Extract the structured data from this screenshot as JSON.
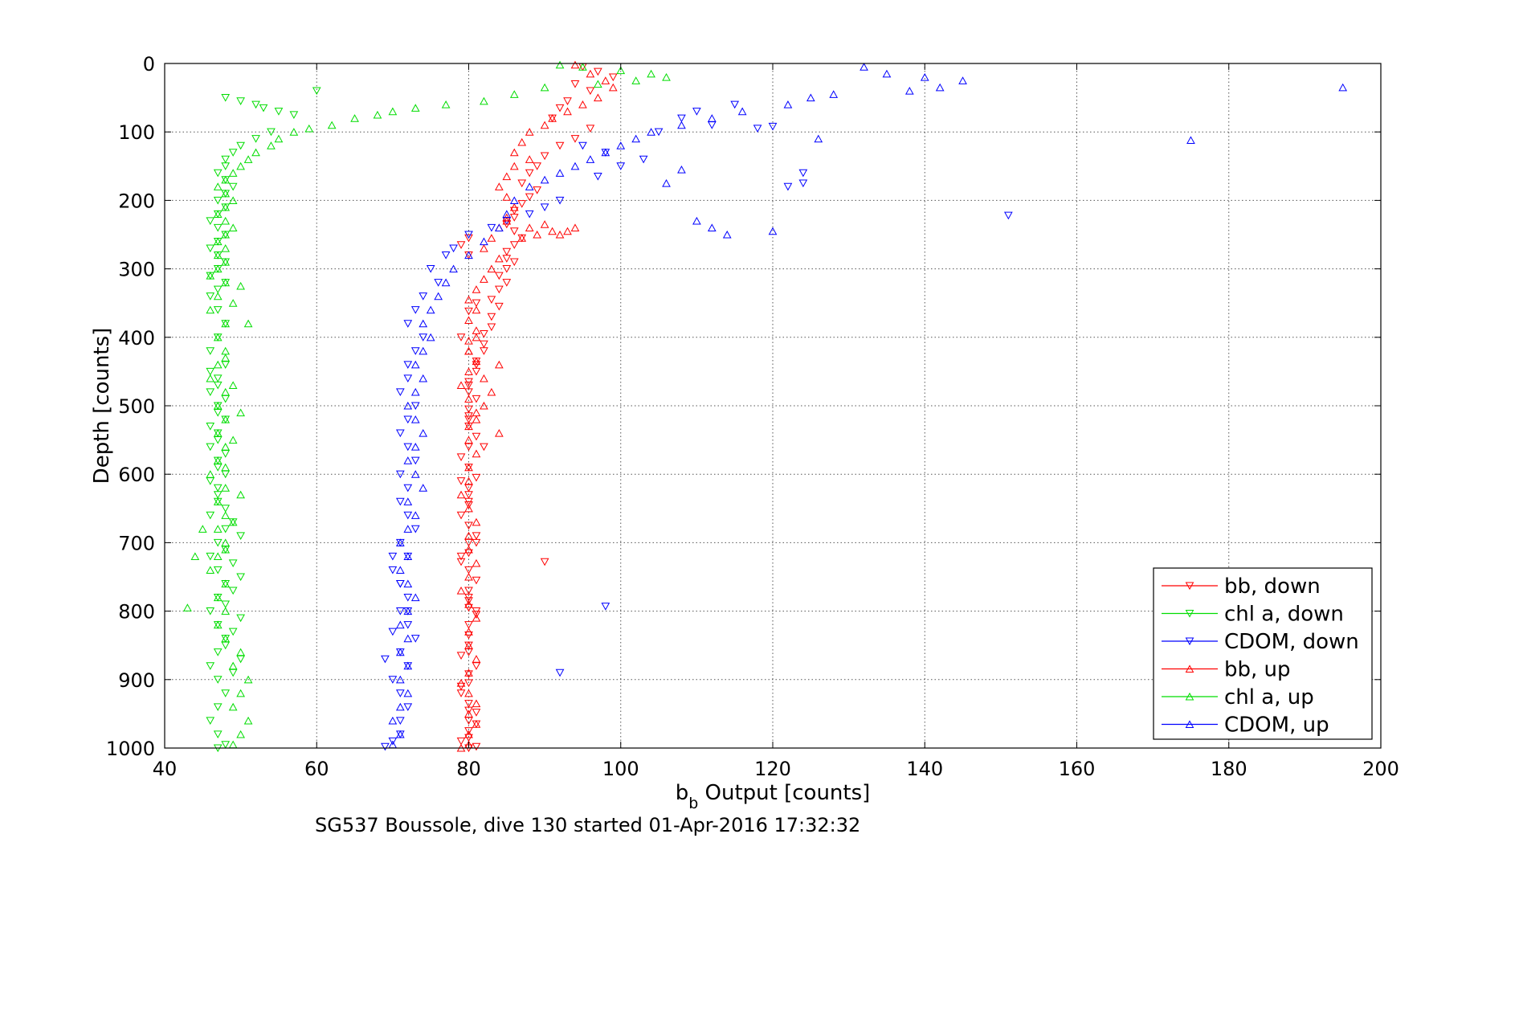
{
  "chart_data": {
    "type": "scatter",
    "title": "",
    "xlabel_main": "b",
    "xlabel_sub": "b",
    "xlabel_rest": " Output [counts]",
    "ylabel": "Depth [counts]",
    "caption": "SG537 Boussole, dive 130 started 01-Apr-2016 17:32:32",
    "xlim": [
      40,
      200
    ],
    "ylim": [
      0,
      1000
    ],
    "y_reversed": true,
    "grid": true,
    "grid_style": "dotted",
    "legend_position": "bottom-right",
    "x_ticks": [
      40,
      60,
      80,
      100,
      120,
      140,
      160,
      180,
      200
    ],
    "y_ticks": [
      0,
      100,
      200,
      300,
      400,
      500,
      600,
      700,
      800,
      900,
      1000
    ],
    "series": [
      {
        "name": "bb, down",
        "color": "#ff0000",
        "marker": "triangle-down",
        "x": [
          95,
          97,
          99,
          94,
          96,
          93,
          92,
          91,
          96,
          94,
          92,
          90,
          89,
          88,
          87,
          89,
          88,
          87,
          86,
          86,
          85,
          86,
          87,
          86,
          85,
          85,
          86,
          85,
          84,
          85,
          84,
          83,
          84,
          83,
          83,
          82,
          82,
          82,
          81,
          81,
          80,
          80,
          81,
          80,
          80,
          80,
          81,
          80,
          79,
          80,
          81,
          80,
          80,
          80,
          79,
          80,
          81,
          80,
          80,
          79,
          80,
          81,
          80,
          80,
          80,
          81,
          80,
          80,
          80,
          79,
          81,
          80,
          80,
          79,
          80,
          81,
          80,
          80,
          79,
          81,
          80,
          80,
          81,
          80,
          79,
          81,
          80,
          80,
          79,
          80,
          81,
          80,
          80,
          79,
          80,
          90,
          81,
          79,
          80,
          82,
          80,
          79,
          81
        ],
        "y": [
          5,
          12,
          20,
          30,
          40,
          55,
          65,
          80,
          95,
          110,
          120,
          135,
          150,
          160,
          175,
          185,
          195,
          205,
          215,
          225,
          235,
          245,
          255,
          265,
          275,
          285,
          290,
          300,
          310,
          320,
          330,
          345,
          355,
          370,
          385,
          395,
          410,
          420,
          435,
          450,
          465,
          480,
          490,
          505,
          515,
          530,
          545,
          560,
          575,
          590,
          605,
          620,
          630,
          645,
          660,
          675,
          690,
          700,
          715,
          728,
          740,
          755,
          770,
          785,
          795,
          805,
          820,
          835,
          850,
          865,
          880,
          892,
          905,
          920,
          935,
          948,
          960,
          975,
          990,
          998,
          1000,
          362,
          440,
          520,
          610,
          700,
          780,
          860,
          910,
          945,
          965,
          985,
          255,
          265,
          280,
          728,
          350,
          400,
          470,
          560,
          640,
          720,
          800
        ]
      },
      {
        "name": "chl a, down",
        "color": "#00dd00",
        "marker": "triangle-down",
        "x": [
          48,
          50,
          52,
          53,
          55,
          57,
          60,
          54,
          52,
          50,
          49,
          48,
          48,
          47,
          48,
          49,
          48,
          47,
          48,
          47,
          46,
          47,
          48,
          47,
          46,
          47,
          48,
          47,
          46,
          48,
          47,
          46,
          47,
          48,
          47,
          46,
          48,
          47,
          46,
          47,
          48,
          47,
          46,
          47,
          48,
          47,
          47,
          46,
          48,
          47,
          46,
          47,
          48,
          47,
          46,
          47,
          48,
          47,
          46,
          47,
          48,
          47,
          46,
          47,
          48,
          47,
          46,
          47,
          48,
          47,
          46,
          47,
          48,
          47,
          46,
          47,
          48,
          49,
          50,
          48,
          49,
          50,
          49,
          48,
          50,
          49,
          48,
          50,
          49
        ],
        "y": [
          50,
          55,
          60,
          65,
          70,
          75,
          40,
          100,
          110,
          120,
          130,
          140,
          150,
          160,
          170,
          180,
          190,
          200,
          210,
          220,
          230,
          240,
          250,
          260,
          270,
          280,
          290,
          300,
          310,
          320,
          330,
          340,
          360,
          380,
          400,
          420,
          440,
          460,
          480,
          500,
          520,
          540,
          560,
          580,
          600,
          620,
          640,
          660,
          680,
          700,
          720,
          740,
          760,
          780,
          800,
          820,
          840,
          860,
          880,
          900,
          920,
          940,
          960,
          980,
          995,
          1000,
          450,
          470,
          490,
          510,
          530,
          550,
          570,
          590,
          610,
          630,
          650,
          670,
          690,
          710,
          730,
          750,
          770,
          790,
          810,
          830,
          850,
          870,
          890
        ]
      },
      {
        "name": "CDOM, down",
        "color": "#0000ff",
        "marker": "triangle-down",
        "x": [
          115,
          110,
          108,
          105,
          112,
          118,
          120,
          124,
          124,
          122,
          100,
          103,
          98,
          97,
          95,
          92,
          90,
          88,
          85,
          83,
          80,
          78,
          77,
          75,
          76,
          74,
          73,
          72,
          74,
          73,
          72,
          72,
          71,
          73,
          72,
          71,
          72,
          73,
          71,
          72,
          71,
          72,
          73,
          71,
          72,
          70,
          71,
          72,
          71,
          72,
          73,
          71,
          72,
          70,
          71,
          72,
          71,
          71,
          70,
          69,
          70,
          71,
          72,
          70,
          69,
          151,
          98,
          92
        ],
        "y": [
          60,
          70,
          80,
          100,
          90,
          95,
          92,
          160,
          175,
          180,
          150,
          140,
          130,
          165,
          120,
          200,
          210,
          220,
          230,
          240,
          250,
          270,
          280,
          300,
          320,
          340,
          360,
          380,
          400,
          420,
          440,
          460,
          480,
          500,
          520,
          540,
          560,
          580,
          600,
          620,
          640,
          660,
          680,
          700,
          720,
          740,
          760,
          780,
          800,
          820,
          840,
          860,
          880,
          900,
          920,
          940,
          960,
          980,
          990,
          998,
          720,
          760,
          800,
          830,
          870,
          222,
          793,
          890
        ]
      },
      {
        "name": "bb, up",
        "color": "#ff0000",
        "marker": "triangle-up",
        "x": [
          94,
          96,
          98,
          99,
          97,
          95,
          93,
          91,
          90,
          88,
          87,
          86,
          88,
          86,
          85,
          84,
          85,
          86,
          85,
          84,
          83,
          82,
          84,
          83,
          82,
          81,
          80,
          81,
          80,
          81,
          80,
          80,
          81,
          80,
          79,
          80,
          81,
          80,
          80,
          81,
          80,
          80,
          79,
          80,
          81,
          80,
          80,
          81,
          80,
          79,
          80,
          81,
          80,
          80,
          81,
          80,
          79,
          80,
          81,
          80,
          81,
          80,
          80,
          79,
          81,
          80,
          84,
          82,
          83,
          82,
          81,
          84,
          85,
          88,
          90,
          93,
          92,
          91,
          94,
          89,
          87
        ],
        "y": [
          2,
          15,
          25,
          35,
          50,
          60,
          70,
          80,
          90,
          100,
          115,
          130,
          140,
          150,
          165,
          180,
          195,
          210,
          225,
          240,
          255,
          270,
          285,
          300,
          315,
          330,
          345,
          360,
          375,
          390,
          405,
          420,
          435,
          450,
          470,
          490,
          510,
          530,
          550,
          570,
          590,
          610,
          630,
          650,
          670,
          690,
          710,
          730,
          750,
          770,
          790,
          810,
          830,
          850,
          870,
          890,
          905,
          920,
          935,
          950,
          965,
          980,
          995,
          1000,
          400,
          420,
          440,
          460,
          480,
          500,
          520,
          540,
          230,
          240,
          235,
          245,
          250,
          245,
          240,
          250,
          255
        ]
      },
      {
        "name": "chl a, up",
        "color": "#00dd00",
        "marker": "triangle-up",
        "x": [
          92,
          95,
          100,
          104,
          106,
          102,
          97,
          90,
          86,
          82,
          77,
          73,
          70,
          68,
          65,
          62,
          59,
          57,
          55,
          54,
          52,
          51,
          50,
          49,
          48,
          47,
          48,
          49,
          48,
          47,
          48,
          49,
          48,
          47,
          48,
          47,
          48,
          47,
          46,
          48,
          47,
          46,
          48,
          47,
          48,
          47,
          46,
          48,
          47,
          48,
          47,
          48,
          47,
          46,
          48,
          47,
          48,
          47,
          48,
          47,
          46,
          48,
          47,
          48,
          47,
          48,
          50,
          49,
          51,
          50,
          49,
          51,
          50,
          49,
          50,
          49,
          51,
          45,
          44,
          43,
          48,
          49,
          50,
          49,
          48,
          50,
          49,
          48
        ],
        "y": [
          2,
          5,
          10,
          15,
          20,
          25,
          30,
          35,
          45,
          55,
          60,
          65,
          70,
          75,
          80,
          90,
          95,
          100,
          110,
          120,
          130,
          140,
          150,
          160,
          170,
          180,
          190,
          200,
          210,
          220,
          230,
          240,
          250,
          260,
          270,
          280,
          290,
          300,
          310,
          320,
          340,
          360,
          380,
          400,
          420,
          440,
          460,
          480,
          500,
          520,
          540,
          560,
          580,
          600,
          620,
          640,
          660,
          680,
          700,
          720,
          740,
          760,
          780,
          800,
          820,
          840,
          860,
          880,
          900,
          920,
          940,
          960,
          980,
          995,
          325,
          350,
          380,
          680,
          720,
          795,
          430,
          470,
          510,
          550,
          590,
          630,
          670,
          710
        ]
      },
      {
        "name": "CDOM, up",
        "color": "#0000ff",
        "marker": "triangle-up",
        "x": [
          132,
          135,
          140,
          145,
          142,
          138,
          128,
          125,
          122,
          116,
          112,
          108,
          104,
          102,
          100,
          98,
          96,
          94,
          92,
          90,
          88,
          86,
          85,
          84,
          82,
          80,
          78,
          77,
          76,
          75,
          74,
          75,
          74,
          73,
          74,
          73,
          72,
          73,
          74,
          73,
          72,
          73,
          74,
          72,
          73,
          72,
          71,
          72,
          71,
          72,
          73,
          72,
          71,
          72,
          71,
          72,
          71,
          72,
          71,
          70,
          71,
          70,
          195,
          175,
          126,
          108,
          106,
          110,
          112,
          114,
          120
        ],
        "y": [
          5,
          15,
          20,
          25,
          35,
          40,
          45,
          50,
          60,
          70,
          80,
          90,
          100,
          110,
          120,
          130,
          140,
          150,
          160,
          170,
          180,
          200,
          220,
          240,
          260,
          280,
          300,
          320,
          340,
          360,
          380,
          400,
          420,
          440,
          460,
          480,
          500,
          520,
          540,
          560,
          580,
          600,
          620,
          640,
          660,
          680,
          700,
          720,
          740,
          760,
          780,
          800,
          820,
          840,
          860,
          880,
          900,
          920,
          940,
          960,
          980,
          995,
          35,
          112,
          110,
          155,
          175,
          230,
          240,
          250,
          245
        ]
      }
    ]
  }
}
